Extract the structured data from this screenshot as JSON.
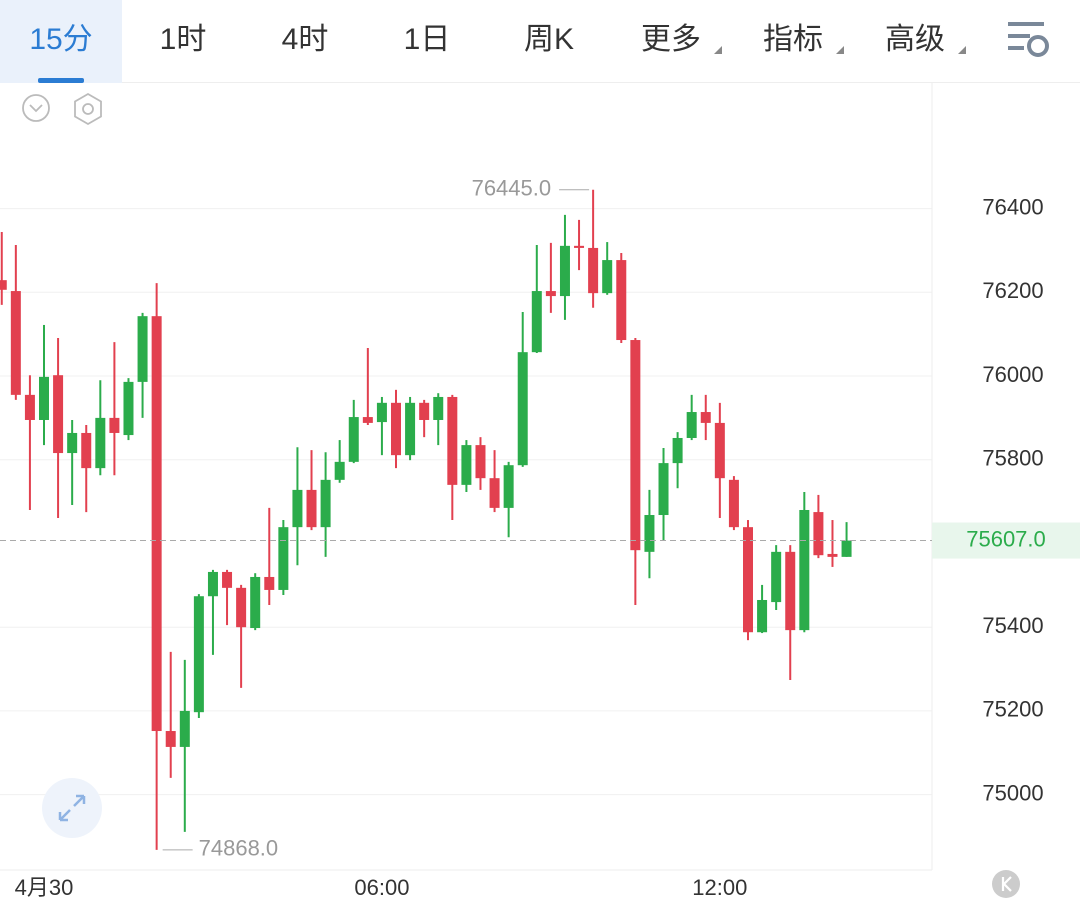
{
  "tabs": [
    "15分",
    "1时",
    "4时",
    "1日",
    "周K",
    "更多",
    "指标",
    "高级"
  ],
  "chart_data": {
    "type": "candlestick",
    "categories": [
      null,
      null,
      null,
      "4月30",
      null,
      null,
      null,
      null,
      null,
      null,
      null,
      null,
      null,
      null,
      null,
      null,
      null,
      null,
      null,
      null,
      null,
      null,
      null,
      null,
      null,
      null,
      null,
      "06:00",
      null,
      null,
      null,
      null,
      null,
      null,
      null,
      null,
      null,
      null,
      null,
      null,
      null,
      null,
      null,
      null,
      null,
      null,
      null,
      null,
      null,
      null,
      null,
      "12:00",
      null,
      null,
      null,
      null,
      null,
      null,
      null,
      null,
      null
    ],
    "open": [
      76229,
      76203,
      75955,
      75895,
      76002,
      75816,
      75864,
      75780,
      75900,
      75859,
      75986,
      76143,
      75152,
      75114,
      75197,
      75474,
      75532,
      75494,
      75398,
      75520,
      75489,
      75639,
      75728,
      75639,
      75752,
      75795,
      75902,
      75890,
      75936,
      75811,
      75936,
      75895,
      75950,
      75740,
      75835,
      75756,
      75685,
      75787,
      76057,
      76203,
      76191,
      76311,
      76306,
      76198,
      76277,
      76086,
      75580,
      75668,
      75792,
      75852,
      75914,
      75888,
      75752,
      75639,
      75388,
      75460,
      75580,
      75393,
      75675,
      75575,
      75568
    ],
    "high": [
      76344,
      76313,
      76002,
      76122,
      76091,
      75895,
      75883,
      75990,
      76081,
      75995,
      76151,
      76222,
      75341,
      75322,
      75479,
      75537,
      75537,
      75501,
      75529,
      75685,
      75656,
      75830,
      75823,
      75818,
      75847,
      75943,
      76067,
      75950,
      75967,
      75950,
      75943,
      75959,
      75955,
      75847,
      75854,
      75823,
      75795,
      76153,
      76313,
      76318,
      76385,
      76373,
      76445,
      76320,
      76294,
      76091,
      75728,
      75828,
      75866,
      75955,
      75955,
      75936,
      75761,
      75656,
      75501,
      75596,
      75596,
      75723,
      75716,
      75656,
      75651
    ],
    "low": [
      76170,
      75943,
      75680,
      75835,
      75661,
      75692,
      75675,
      75763,
      75763,
      75847,
      75900,
      74868,
      75040,
      74911,
      75183,
      75334,
      75405,
      75255,
      75393,
      75453,
      75477,
      75548,
      75632,
      75568,
      75745,
      75792,
      75883,
      75811,
      75780,
      75799,
      75854,
      75835,
      75656,
      75723,
      75728,
      75675,
      75615,
      75783,
      76055,
      76151,
      76134,
      76253,
      76163,
      76194,
      76079,
      75453,
      75517,
      75608,
      75732,
      75847,
      75847,
      75661,
      75632,
      75369,
      75386,
      75441,
      75274,
      75388,
      75565,
      75544,
      75568
    ],
    "close": [
      76206,
      75955,
      75895,
      75998,
      75816,
      75864,
      75780,
      75900,
      75864,
      75986,
      76143,
      75152,
      75114,
      75200,
      75474,
      75532,
      75494,
      75400,
      75520,
      75489,
      75639,
      75728,
      75639,
      75752,
      75795,
      75902,
      75888,
      75936,
      75811,
      75936,
      75895,
      75950,
      75740,
      75835,
      75756,
      75685,
      75787,
      76057,
      76203,
      76191,
      76311,
      76306,
      76198,
      76277,
      76086,
      75584,
      75668,
      75792,
      75852,
      75914,
      75888,
      75756,
      75639,
      75388,
      75465,
      75580,
      75393,
      75680,
      75572,
      75568,
      75607
    ],
    "up_color": "#2bac4b",
    "down_color": "#e2404f",
    "ylim": [
      74820,
      76700
    ],
    "yticks": [
      75000,
      75200,
      75400,
      75800,
      76000,
      76200,
      76400
    ],
    "grid": true,
    "max_label": {
      "value": 76445,
      "label": "76445.0"
    },
    "min_label": {
      "value": 74868,
      "label": "74868.0"
    },
    "last_price": {
      "value": 75607,
      "label": "75607.0"
    }
  }
}
